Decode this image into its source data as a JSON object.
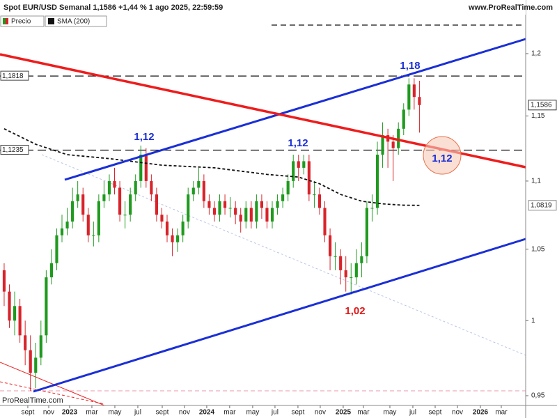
{
  "chart_data": {
    "type": "candlestick",
    "title": "Spot EUR/USD Semanal 1,1586 +1,44 % 1 ago 2025, 22:59:59",
    "source": "www.ProRealTime.com",
    "watermark": "ProRealTime.com",
    "log_scale": true,
    "ylim": [
      0.9437,
      1.233
    ],
    "xlim": [
      -0.79,
      99.21
    ],
    "yticks": [
      {
        "value": 0.95,
        "label": "0,95"
      },
      1,
      {
        "value": 1.05,
        "label": "1,05"
      },
      {
        "value": 1.1,
        "label": "1,1"
      },
      {
        "value": 1.15,
        "label": "1,15"
      },
      {
        "value": 1.2,
        "label": "1,2"
      }
    ],
    "xticks": [
      {
        "value": 4.5,
        "label": "sept"
      },
      {
        "value": 8.48,
        "label": "nov"
      },
      {
        "value": 12.45,
        "label": "2023"
      },
      {
        "value": 16.69,
        "label": "mar"
      },
      {
        "value": 21.06,
        "label": "may"
      },
      {
        "value": 25.43,
        "label": "jul"
      },
      {
        "value": 30.07,
        "label": "sept"
      },
      {
        "value": 34.3,
        "label": "nov"
      },
      {
        "value": 38.54,
        "label": "2024"
      },
      {
        "value": 42.9,
        "label": "mar"
      },
      {
        "value": 47.28,
        "label": "may"
      },
      {
        "value": 51.52,
        "label": "jul"
      },
      {
        "value": 55.89,
        "label": "sept"
      },
      {
        "value": 60.13,
        "label": "nov"
      },
      {
        "value": 64.5,
        "label": "2025"
      },
      {
        "value": 68.34,
        "label": "mar"
      },
      {
        "value": 73.38,
        "label": "may"
      },
      {
        "value": 77.75,
        "label": "jul"
      },
      {
        "value": 81.99,
        "label": "sept"
      },
      {
        "value": 86.23,
        "label": "nov"
      },
      {
        "value": 90.6,
        "label": "2026"
      },
      {
        "value": 94.57,
        "label": "mar"
      }
    ],
    "series": [
      {
        "name": "Precio",
        "up_color": "#1f9a1f",
        "down_color": "#d8232a",
        "open": [
          1.035,
          1.02,
          1.0,
          1.01,
          0.99,
          0.98,
          0.965,
          0.975,
          0.99,
          1.03,
          1.04,
          1.06,
          1.065,
          1.07,
          1.085,
          1.09,
          1.075,
          1.06,
          1.06,
          1.085,
          1.09,
          1.1,
          1.095,
          1.075,
          1.075,
          1.09,
          1.1,
          1.12,
          1.1,
          1.09,
          1.075,
          1.07,
          1.06,
          1.055,
          1.06,
          1.07,
          1.09,
          1.095,
          1.1,
          1.085,
          1.08,
          1.075,
          1.085,
          1.08,
          1.08,
          1.075,
          1.07,
          1.08,
          1.07,
          1.085,
          1.08,
          1.07,
          1.08,
          1.085,
          1.09,
          1.1,
          1.115,
          1.11,
          1.115,
          1.09,
          1.09,
          1.08,
          1.06,
          1.045,
          1.045,
          1.035,
          1.03,
          1.03,
          1.04,
          1.045,
          1.08,
          1.08,
          1.12,
          1.135,
          1.13,
          1.125,
          1.14,
          1.155,
          1.175,
          1.165
        ],
        "high": [
          1.04,
          1.025,
          1.02,
          1.015,
          1.0,
          0.99,
          0.985,
          1.0,
          1.035,
          1.05,
          1.065,
          1.075,
          1.08,
          1.095,
          1.1,
          1.095,
          1.08,
          1.07,
          1.09,
          1.1,
          1.105,
          1.11,
          1.1,
          1.085,
          1.095,
          1.105,
          1.127,
          1.125,
          1.105,
          1.095,
          1.08,
          1.075,
          1.065,
          1.065,
          1.075,
          1.095,
          1.1,
          1.11,
          1.105,
          1.09,
          1.085,
          1.09,
          1.09,
          1.088,
          1.085,
          1.08,
          1.085,
          1.085,
          1.09,
          1.09,
          1.085,
          1.085,
          1.09,
          1.095,
          1.105,
          1.12,
          1.12,
          1.12,
          1.12,
          1.1,
          1.095,
          1.085,
          1.065,
          1.055,
          1.05,
          1.045,
          1.04,
          1.05,
          1.055,
          1.085,
          1.09,
          1.13,
          1.145,
          1.14,
          1.135,
          1.145,
          1.16,
          1.18,
          1.18,
          1.178
        ],
        "low": [
          1.01,
          0.995,
          0.99,
          0.985,
          0.97,
          0.953,
          0.955,
          0.97,
          0.985,
          1.025,
          1.035,
          1.055,
          1.06,
          1.065,
          1.08,
          1.07,
          1.055,
          1.052,
          1.055,
          1.08,
          1.085,
          1.09,
          1.07,
          1.065,
          1.07,
          1.085,
          1.095,
          1.095,
          1.085,
          1.07,
          1.065,
          1.055,
          1.045,
          1.048,
          1.055,
          1.065,
          1.085,
          1.09,
          1.08,
          1.075,
          1.07,
          1.07,
          1.075,
          1.073,
          1.068,
          1.062,
          1.065,
          1.065,
          1.065,
          1.072,
          1.065,
          1.065,
          1.075,
          1.08,
          1.085,
          1.095,
          1.1,
          1.105,
          1.085,
          1.08,
          1.075,
          1.055,
          1.035,
          1.035,
          1.025,
          1.02,
          1.018,
          1.025,
          1.03,
          1.04,
          1.07,
          1.075,
          1.11,
          1.11,
          1.1,
          1.12,
          1.135,
          1.15,
          1.155,
          1.137
        ],
        "close": [
          1.02,
          1.0,
          1.01,
          0.99,
          0.98,
          0.965,
          0.975,
          0.99,
          1.03,
          1.04,
          1.06,
          1.065,
          1.07,
          1.085,
          1.09,
          1.075,
          1.06,
          1.06,
          1.085,
          1.09,
          1.1,
          1.095,
          1.075,
          1.075,
          1.09,
          1.1,
          1.12,
          1.1,
          1.09,
          1.075,
          1.07,
          1.06,
          1.055,
          1.06,
          1.07,
          1.09,
          1.095,
          1.1,
          1.085,
          1.08,
          1.075,
          1.085,
          1.08,
          1.08,
          1.075,
          1.07,
          1.08,
          1.07,
          1.085,
          1.08,
          1.07,
          1.08,
          1.085,
          1.09,
          1.1,
          1.115,
          1.11,
          1.115,
          1.09,
          1.09,
          1.08,
          1.06,
          1.045,
          1.045,
          1.035,
          1.03,
          1.03,
          1.04,
          1.045,
          1.08,
          1.08,
          1.12,
          1.135,
          1.13,
          1.125,
          1.14,
          1.155,
          1.175,
          1.165,
          1.1586
        ],
        "last_label": {
          "value": 1.1586,
          "label": "1,1586"
        }
      },
      {
        "name": "SMA (200)",
        "type": "line",
        "color": "#111111",
        "x": [
          0,
          6,
          12,
          20,
          30,
          40,
          50,
          56,
          60,
          64,
          68,
          72,
          76,
          79
        ],
        "values": [
          1.14,
          1.128,
          1.12,
          1.117,
          1.112,
          1.11,
          1.105,
          1.103,
          1.098,
          1.09,
          1.085,
          1.083,
          1.082,
          1.0819
        ],
        "last_label": {
          "value": 1.0819,
          "label": "1,0819"
        }
      }
    ],
    "levels": [
      {
        "value": 1.1818,
        "label": "1,1818"
      },
      {
        "value": 1.1235,
        "label": "1,1235"
      }
    ],
    "annotations": [
      "1,18",
      "1,12",
      "1,12",
      "1,12",
      "1,02"
    ]
  }
}
